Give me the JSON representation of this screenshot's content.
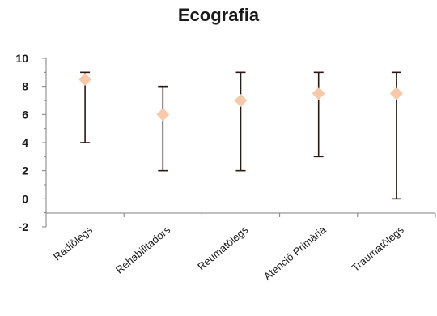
{
  "chart_data": {
    "type": "scatter",
    "title": "Ecografia",
    "xlabel": "",
    "ylabel": "",
    "categories": [
      "Radiòlegs",
      "Rehabilitadors",
      "Reumatòlegs",
      "Atenció Primària",
      "Traumatòlegs"
    ],
    "series": [
      {
        "values": [
          8.5,
          6,
          7,
          7.5,
          7.5
        ],
        "low": [
          4,
          2,
          2,
          3,
          0
        ],
        "high": [
          9,
          8,
          9,
          9,
          9
        ]
      }
    ],
    "ylim": [
      -2,
      10
    ],
    "yticks": [
      -2,
      0,
      2,
      4,
      6,
      8,
      10
    ],
    "marker": "diamond",
    "colors": {
      "marker": "#f7c9a8",
      "error_bar": "#2b1a14",
      "axis": "#7f7f7f"
    },
    "grid": false,
    "legend": "none"
  }
}
